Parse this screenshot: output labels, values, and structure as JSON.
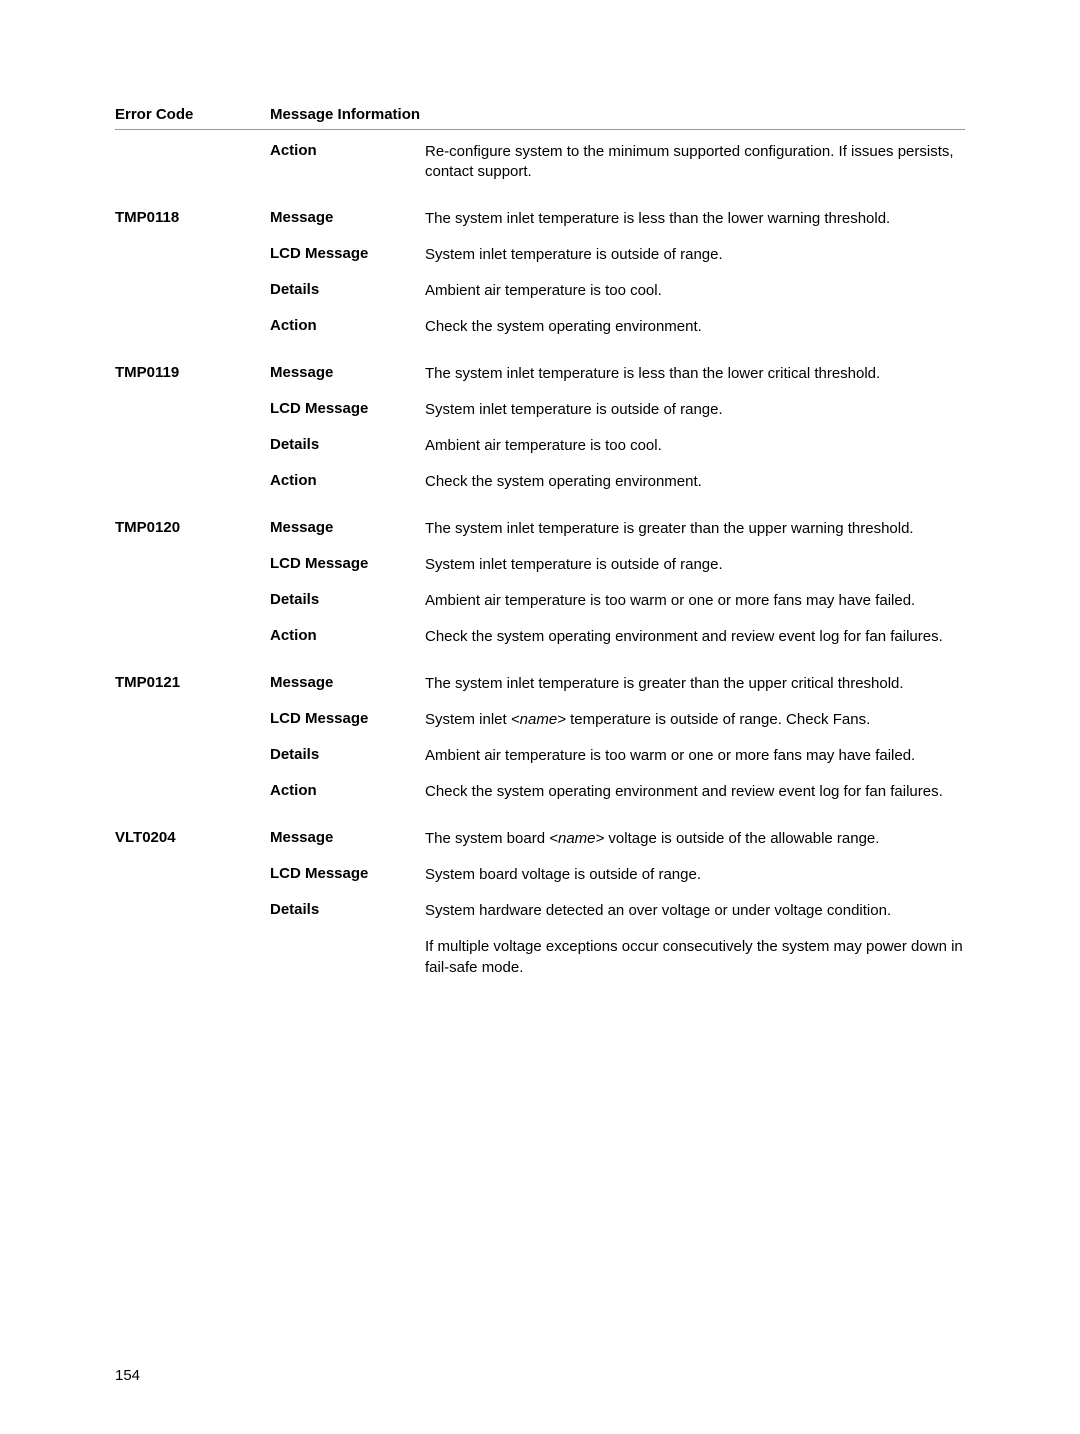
{
  "header": {
    "code": "Error Code",
    "info": "Message Information"
  },
  "rows": [
    {
      "code": "",
      "field": "Action",
      "value": "Re-configure system to the minimum supported configuration. If issues persists, contact support."
    },
    {
      "code": "TMP0118",
      "field": "Message",
      "value": "The system inlet temperature is less than the lower warning threshold.",
      "groupTop": true
    },
    {
      "code": "",
      "field": "LCD Message",
      "value": "System inlet temperature is outside of range."
    },
    {
      "code": "",
      "field": "Details",
      "value": "Ambient air temperature is too cool."
    },
    {
      "code": "",
      "field": "Action",
      "value": "Check the system operating environment."
    },
    {
      "code": "TMP0119",
      "field": "Message",
      "value": "The system inlet temperature is less than the lower critical threshold.",
      "groupTop": true
    },
    {
      "code": "",
      "field": "LCD Message",
      "value": "System inlet temperature is outside of range."
    },
    {
      "code": "",
      "field": "Details",
      "value": "Ambient air temperature is too cool."
    },
    {
      "code": "",
      "field": "Action",
      "value": "Check the system operating environment."
    },
    {
      "code": "TMP0120",
      "field": "Message",
      "value": "The system inlet temperature is greater than the upper warning threshold.",
      "groupTop": true
    },
    {
      "code": "",
      "field": "LCD Message",
      "value": "System inlet temperature is outside of range."
    },
    {
      "code": "",
      "field": "Details",
      "value": "Ambient air temperature is too warm or one or more fans may have failed."
    },
    {
      "code": "",
      "field": "Action",
      "value": "Check the system operating environment and review event log for fan failures."
    },
    {
      "code": "TMP0121",
      "field": "Message",
      "value": "The system inlet temperature is greater than the upper critical threshold.",
      "groupTop": true
    },
    {
      "code": "",
      "field": "LCD Message",
      "html": "System inlet <span class=\"italic\">&lt;name&gt;</span> temperature is outside of range. Check Fans."
    },
    {
      "code": "",
      "field": "Details",
      "value": "Ambient air temperature is too warm or one or more fans may have failed."
    },
    {
      "code": "",
      "field": "Action",
      "value": "Check the system operating environment and review event log for fan failures."
    },
    {
      "code": "VLT0204",
      "field": "Message",
      "html": "The system board <span class=\"italic\">&lt;name&gt;</span> voltage is outside of the allowable range.",
      "groupTop": true
    },
    {
      "code": "",
      "field": "LCD Message",
      "value": "System board voltage is outside of range."
    },
    {
      "code": "",
      "field": "Details",
      "value": "System hardware detected an over voltage or under voltage condition."
    },
    {
      "code": "",
      "field": "",
      "value": "If multiple voltage exceptions occur consecutively the system may power down in fail-safe mode."
    }
  ],
  "pageNumber": "154"
}
